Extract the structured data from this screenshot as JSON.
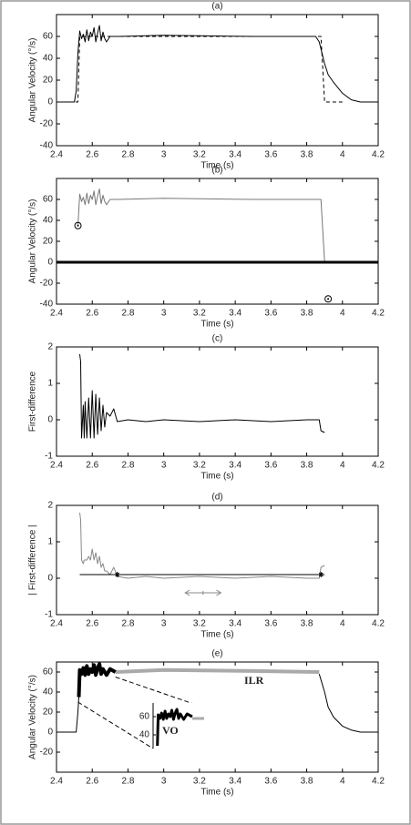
{
  "chart_data": [
    {
      "type": "line",
      "title": "(a)",
      "x_label": "Time (s)",
      "y_label": "Angular Velocity (°/s)",
      "xlim": [
        2.4,
        4.2
      ],
      "xticks": [
        2.4,
        2.6,
        2.8,
        3,
        3.2,
        3.4,
        3.6,
        3.8,
        4,
        4.2
      ],
      "ylim": [
        -40,
        80
      ],
      "yticks": [
        -40,
        -20,
        0,
        20,
        40,
        60
      ],
      "series": [
        {
          "color": "#000000",
          "line_width": 1,
          "style": "line",
          "x": [
            2.4,
            2.5,
            2.51,
            2.52,
            2.53,
            2.54,
            2.55,
            2.56,
            2.57,
            2.58,
            2.59,
            2.6,
            2.61,
            2.62,
            2.63,
            2.64,
            2.65,
            2.66,
            2.67,
            2.68,
            2.7,
            2.75,
            3.0,
            3.5,
            3.85,
            3.87,
            3.9,
            3.92,
            3.95,
            4.0,
            4.05,
            4.1,
            4.2
          ],
          "values": [
            0,
            0,
            10,
            45,
            65,
            58,
            62,
            55,
            66,
            56,
            64,
            60,
            68,
            55,
            63,
            70,
            56,
            64,
            58,
            55,
            60,
            60,
            61,
            60,
            60,
            55,
            35,
            25,
            18,
            8,
            2,
            0,
            0
          ]
        },
        {
          "color": "#000000",
          "line_width": 1,
          "style": "dashed",
          "x": [
            2.4,
            2.52,
            2.53,
            3.88,
            3.9,
            4.0
          ],
          "values": [
            0,
            0,
            60,
            60,
            0,
            0
          ]
        }
      ]
    },
    {
      "type": "line",
      "title": "(b)",
      "x_label": "Time (s)",
      "y_label": "Angular Velocity (°/s)",
      "xlim": [
        2.4,
        4.2
      ],
      "xticks": [
        2.4,
        2.6,
        2.8,
        3,
        3.2,
        3.4,
        3.6,
        3.8,
        4,
        4.2
      ],
      "ylim": [
        -40,
        80
      ],
      "yticks": [
        -40,
        -20,
        0,
        20,
        40,
        60
      ],
      "series": [
        {
          "color": "#777777",
          "line_width": 1,
          "style": "line",
          "x": [
            2.52,
            2.53,
            2.54,
            2.55,
            2.56,
            2.57,
            2.58,
            2.59,
            2.6,
            2.61,
            2.62,
            2.63,
            2.64,
            2.65,
            2.66,
            2.67,
            2.68,
            2.7,
            2.75,
            3.0,
            3.5,
            3.88,
            3.9
          ],
          "values": [
            35,
            65,
            58,
            62,
            55,
            66,
            56,
            64,
            60,
            68,
            55,
            63,
            70,
            56,
            64,
            58,
            55,
            60,
            60,
            61,
            60,
            60,
            0
          ]
        },
        {
          "color": "#000000",
          "line_width": 3,
          "style": "line",
          "x": [
            2.4,
            4.2
          ],
          "values": [
            0,
            0
          ]
        },
        {
          "color": "#000000",
          "line_width": 1,
          "style": "circle",
          "x": [
            2.52,
            3.92
          ],
          "values": [
            35,
            -35
          ]
        }
      ]
    },
    {
      "type": "line",
      "title": "(c)",
      "x_label": "Time (s)",
      "y_label": "First-difference",
      "xlim": [
        2.4,
        4.2
      ],
      "xticks": [
        2.4,
        2.6,
        2.8,
        3,
        3.2,
        3.4,
        3.6,
        3.8,
        4,
        4.2
      ],
      "ylim": [
        -1,
        2
      ],
      "yticks": [
        -1,
        0,
        1,
        2
      ],
      "series": [
        {
          "color": "#000000",
          "line_width": 1,
          "style": "line",
          "x": [
            2.53,
            2.535,
            2.54,
            2.55,
            2.555,
            2.56,
            2.57,
            2.58,
            2.59,
            2.6,
            2.61,
            2.62,
            2.63,
            2.64,
            2.65,
            2.66,
            2.67,
            2.68,
            2.7,
            2.72,
            2.74,
            2.8,
            2.9,
            3.0,
            3.2,
            3.4,
            3.6,
            3.8,
            3.87,
            3.88,
            3.9
          ],
          "values": [
            1.8,
            1.6,
            -0.5,
            0.4,
            -0.5,
            0.5,
            -0.5,
            0.6,
            -0.5,
            0.8,
            -0.5,
            0.7,
            -0.4,
            0.6,
            -0.3,
            0.4,
            -0.2,
            0.2,
            0.1,
            0.3,
            -0.05,
            0,
            -0.05,
            0,
            -0.05,
            0,
            -0.05,
            0,
            0,
            -0.3,
            -0.35
          ]
        }
      ]
    },
    {
      "type": "line",
      "title": "(d)",
      "x_label": "Time (s)",
      "y_label": "| First-difference |",
      "xlim": [
        2.4,
        4.2
      ],
      "xticks": [
        2.4,
        2.6,
        2.8,
        3,
        3.2,
        3.4,
        3.6,
        3.8,
        4,
        4.2
      ],
      "ylim": [
        -1,
        2
      ],
      "yticks": [
        -1,
        0,
        1,
        2
      ],
      "series": [
        {
          "color": "#888888",
          "line_width": 1,
          "style": "line",
          "x": [
            2.53,
            2.535,
            2.54,
            2.55,
            2.555,
            2.56,
            2.57,
            2.58,
            2.59,
            2.6,
            2.61,
            2.62,
            2.63,
            2.64,
            2.65,
            2.66,
            2.67,
            2.68,
            2.7,
            2.72,
            2.74,
            2.8,
            2.9,
            3.0,
            3.2,
            3.4,
            3.6,
            3.8,
            3.87,
            3.88,
            3.9
          ],
          "values": [
            1.8,
            1.6,
            0.5,
            0.4,
            0.5,
            0.5,
            0.5,
            0.6,
            0.5,
            0.8,
            0.5,
            0.7,
            0.4,
            0.6,
            0.3,
            0.4,
            0.2,
            0.2,
            0.1,
            0.3,
            0.05,
            0,
            0.05,
            0,
            0.05,
            0,
            0.05,
            0,
            0,
            0.3,
            0.35
          ]
        },
        {
          "color": "#000000",
          "line_width": 1,
          "style": "line",
          "x": [
            2.53,
            3.9
          ],
          "values": [
            0.1,
            0.1
          ]
        },
        {
          "color": "#000000",
          "line_width": 1,
          "style": "asterisk",
          "x": [
            2.74,
            3.88
          ],
          "values": [
            0.1,
            0.1
          ]
        }
      ]
    },
    {
      "type": "line",
      "title": "(e)",
      "x_label": "Time (s)",
      "y_label": "Angular Velocity (°/s)",
      "xlim": [
        2.4,
        4.2
      ],
      "xticks": [
        2.4,
        2.6,
        2.8,
        3,
        3.2,
        3.4,
        3.6,
        3.8,
        4,
        4.2
      ],
      "ylim": [
        -40,
        70
      ],
      "yticks": [
        -20,
        0,
        20,
        40,
        60
      ],
      "annotations": [
        "ILR",
        "VO"
      ],
      "series": [
        {
          "color": "#000000",
          "line_width": 1,
          "style": "line",
          "x": [
            2.4,
            2.51,
            2.52,
            2.525
          ],
          "values": [
            0,
            0,
            20,
            35
          ]
        },
        {
          "color": "#aaaaaa",
          "line_width": 4,
          "style": "line",
          "x": [
            2.73,
            3.0,
            3.5,
            3.87
          ],
          "values": [
            60,
            62,
            61,
            60
          ]
        },
        {
          "color": "#000000",
          "line_width": 4,
          "style": "line",
          "x": [
            2.525,
            2.53,
            2.54,
            2.55,
            2.56,
            2.57,
            2.58,
            2.59,
            2.6,
            2.61,
            2.62,
            2.63,
            2.64,
            2.65,
            2.66,
            2.67,
            2.68,
            2.7,
            2.73
          ],
          "values": [
            35,
            62,
            58,
            64,
            57,
            66,
            58,
            63,
            60,
            67,
            57,
            64,
            68,
            58,
            63,
            60,
            57,
            63,
            60
          ]
        },
        {
          "color": "#000000",
          "line_width": 1,
          "style": "line",
          "x": [
            3.87,
            3.9,
            3.92,
            3.95,
            4.0,
            4.05,
            4.1,
            4.2
          ],
          "values": [
            58,
            40,
            25,
            15,
            6,
            2,
            0,
            0
          ]
        }
      ],
      "inset": {
        "xlim": [
          2.5,
          2.8
        ],
        "ylim": [
          25,
          75
        ],
        "yticks": [
          40,
          60
        ],
        "series": [
          {
            "color": "#aaaaaa",
            "line_width": 3,
            "style": "line",
            "x": [
              2.73,
              2.8
            ],
            "values": [
              58,
              58
            ]
          },
          {
            "color": "#000000",
            "line_width": 3,
            "style": "line",
            "x": [
              2.525,
              2.53,
              2.54,
              2.55,
              2.56,
              2.57,
              2.58,
              2.59,
              2.6,
              2.61,
              2.62,
              2.63,
              2.64,
              2.65,
              2.66,
              2.67,
              2.68,
              2.7,
              2.73
            ],
            "values": [
              28,
              62,
              58,
              64,
              57,
              66,
              58,
              63,
              60,
              67,
              57,
              64,
              68,
              58,
              63,
              60,
              57,
              63,
              60
            ]
          }
        ]
      }
    }
  ]
}
